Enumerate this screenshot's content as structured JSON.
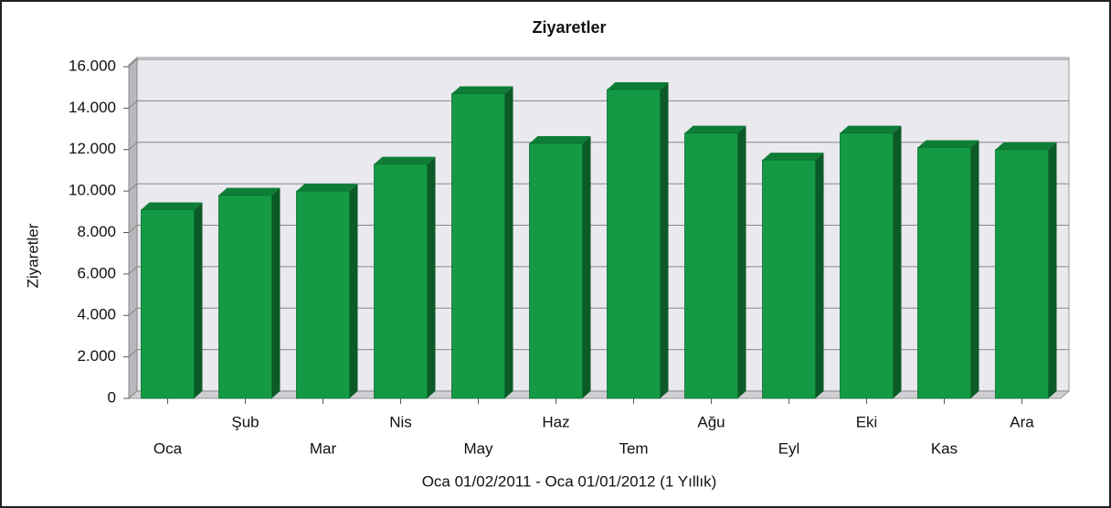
{
  "chart_data": {
    "type": "bar",
    "title": "Ziyaretler",
    "y_label": "Ziyaretler",
    "x_label": "Oca 01/02/2011 - Oca 01/01/2012 (1 Yıllık)",
    "categories": [
      "Oca",
      "Şub",
      "Mar",
      "Nis",
      "May",
      "Haz",
      "Tem",
      "Ağu",
      "Eyl",
      "Eki",
      "Kas",
      "Ara"
    ],
    "values": [
      9100,
      9800,
      10000,
      11300,
      14700,
      12300,
      14900,
      12800,
      11500,
      12800,
      12100,
      12000
    ],
    "color": "#149a44",
    "ylim": [
      0,
      16000
    ],
    "yticks": [
      0,
      {
        "value": 2000,
        "label": "2.000"
      },
      {
        "value": 4000,
        "label": "4.000"
      },
      {
        "value": 6000,
        "label": "6.000"
      },
      {
        "value": 8000,
        "label": "8.000"
      },
      {
        "value": 10000,
        "label": "10.000"
      },
      {
        "value": 12000,
        "label": "12.000"
      },
      {
        "value": 14000,
        "label": "14.000"
      },
      {
        "value": 16000,
        "label": "16.000"
      }
    ],
    "grid": true
  }
}
